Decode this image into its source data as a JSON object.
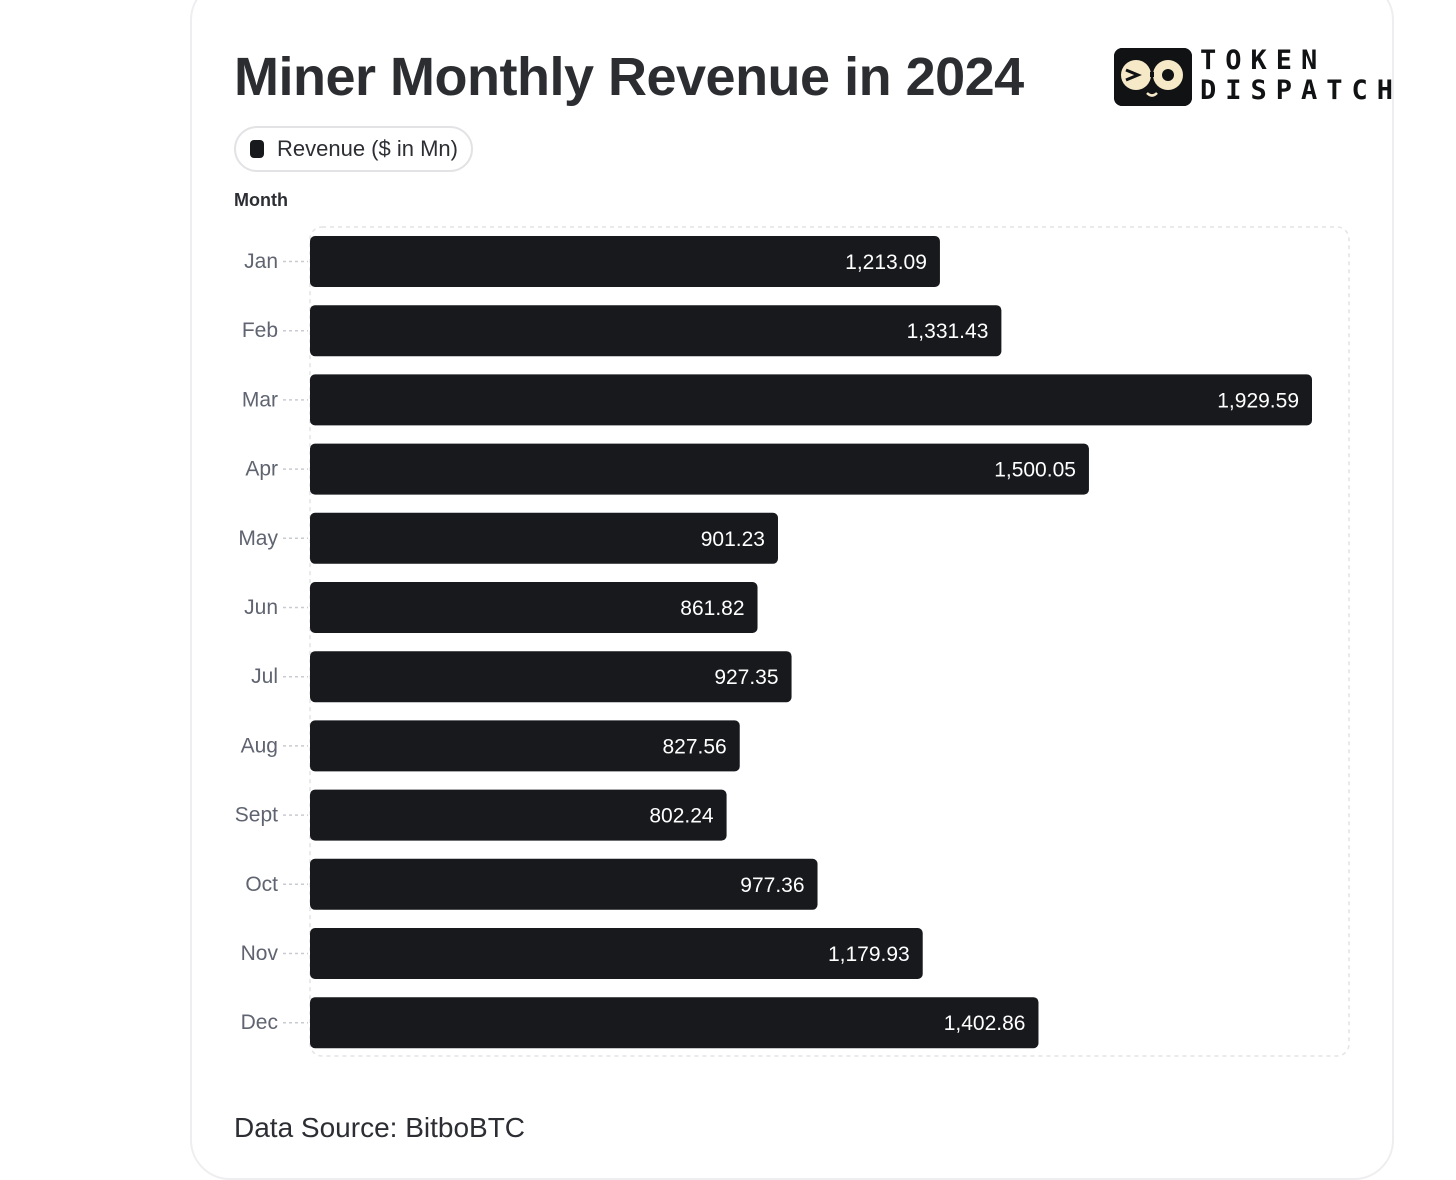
{
  "header": {
    "title": "Miner Monthly Revenue in 2024",
    "logo_line1": "TOKEN",
    "logo_line2": "DISPATCH"
  },
  "legend": {
    "label": "Revenue ($ in Mn)"
  },
  "footer": {
    "source": "Data Source: BitboBTC"
  },
  "colors": {
    "bar": "#17191c",
    "bar_label": "#ffffff",
    "tick_label": "#5f6470",
    "grid": "#e4e4e7"
  },
  "chart_data": {
    "type": "bar",
    "orientation": "horizontal",
    "title": "Miner Monthly Revenue in 2024",
    "ylabel": "Month",
    "categories": [
      "Jan",
      "Feb",
      "Mar",
      "Apr",
      "May",
      "Jun",
      "Jul",
      "Aug",
      "Sept",
      "Oct",
      "Nov",
      "Dec"
    ],
    "series": [
      {
        "name": "Revenue ($ in Mn)",
        "values": [
          1213.09,
          1331.43,
          1929.59,
          1500.05,
          901.23,
          861.82,
          927.35,
          827.56,
          802.24,
          977.36,
          1179.93,
          1402.86
        ],
        "labels": [
          "1,213.09",
          "1,331.43",
          "1,929.59",
          "1,500.05",
          "901.23",
          "861.82",
          "927.35",
          "827.56",
          "802.24",
          "977.36",
          "1,179.93",
          "1,402.86"
        ]
      }
    ],
    "legend_position": "top-left",
    "grid": false
  }
}
